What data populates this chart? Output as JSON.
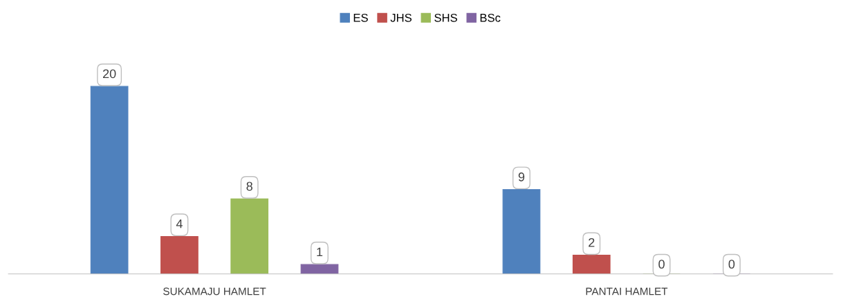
{
  "chart_data": {
    "type": "bar",
    "categories": [
      "SUKAMAJU HAMLET",
      "PANTAI HAMLET"
    ],
    "series": [
      {
        "name": "ES",
        "color": "#4f81bd",
        "values": [
          20,
          9
        ]
      },
      {
        "name": "JHS",
        "color": "#c0504d",
        "values": [
          4,
          2
        ]
      },
      {
        "name": "SHS",
        "color": "#9bbb59",
        "values": [
          8,
          0
        ]
      },
      {
        "name": "BSc",
        "color": "#8064a2",
        "values": [
          1,
          0
        ]
      }
    ],
    "data_labels": true,
    "legend": "top"
  }
}
